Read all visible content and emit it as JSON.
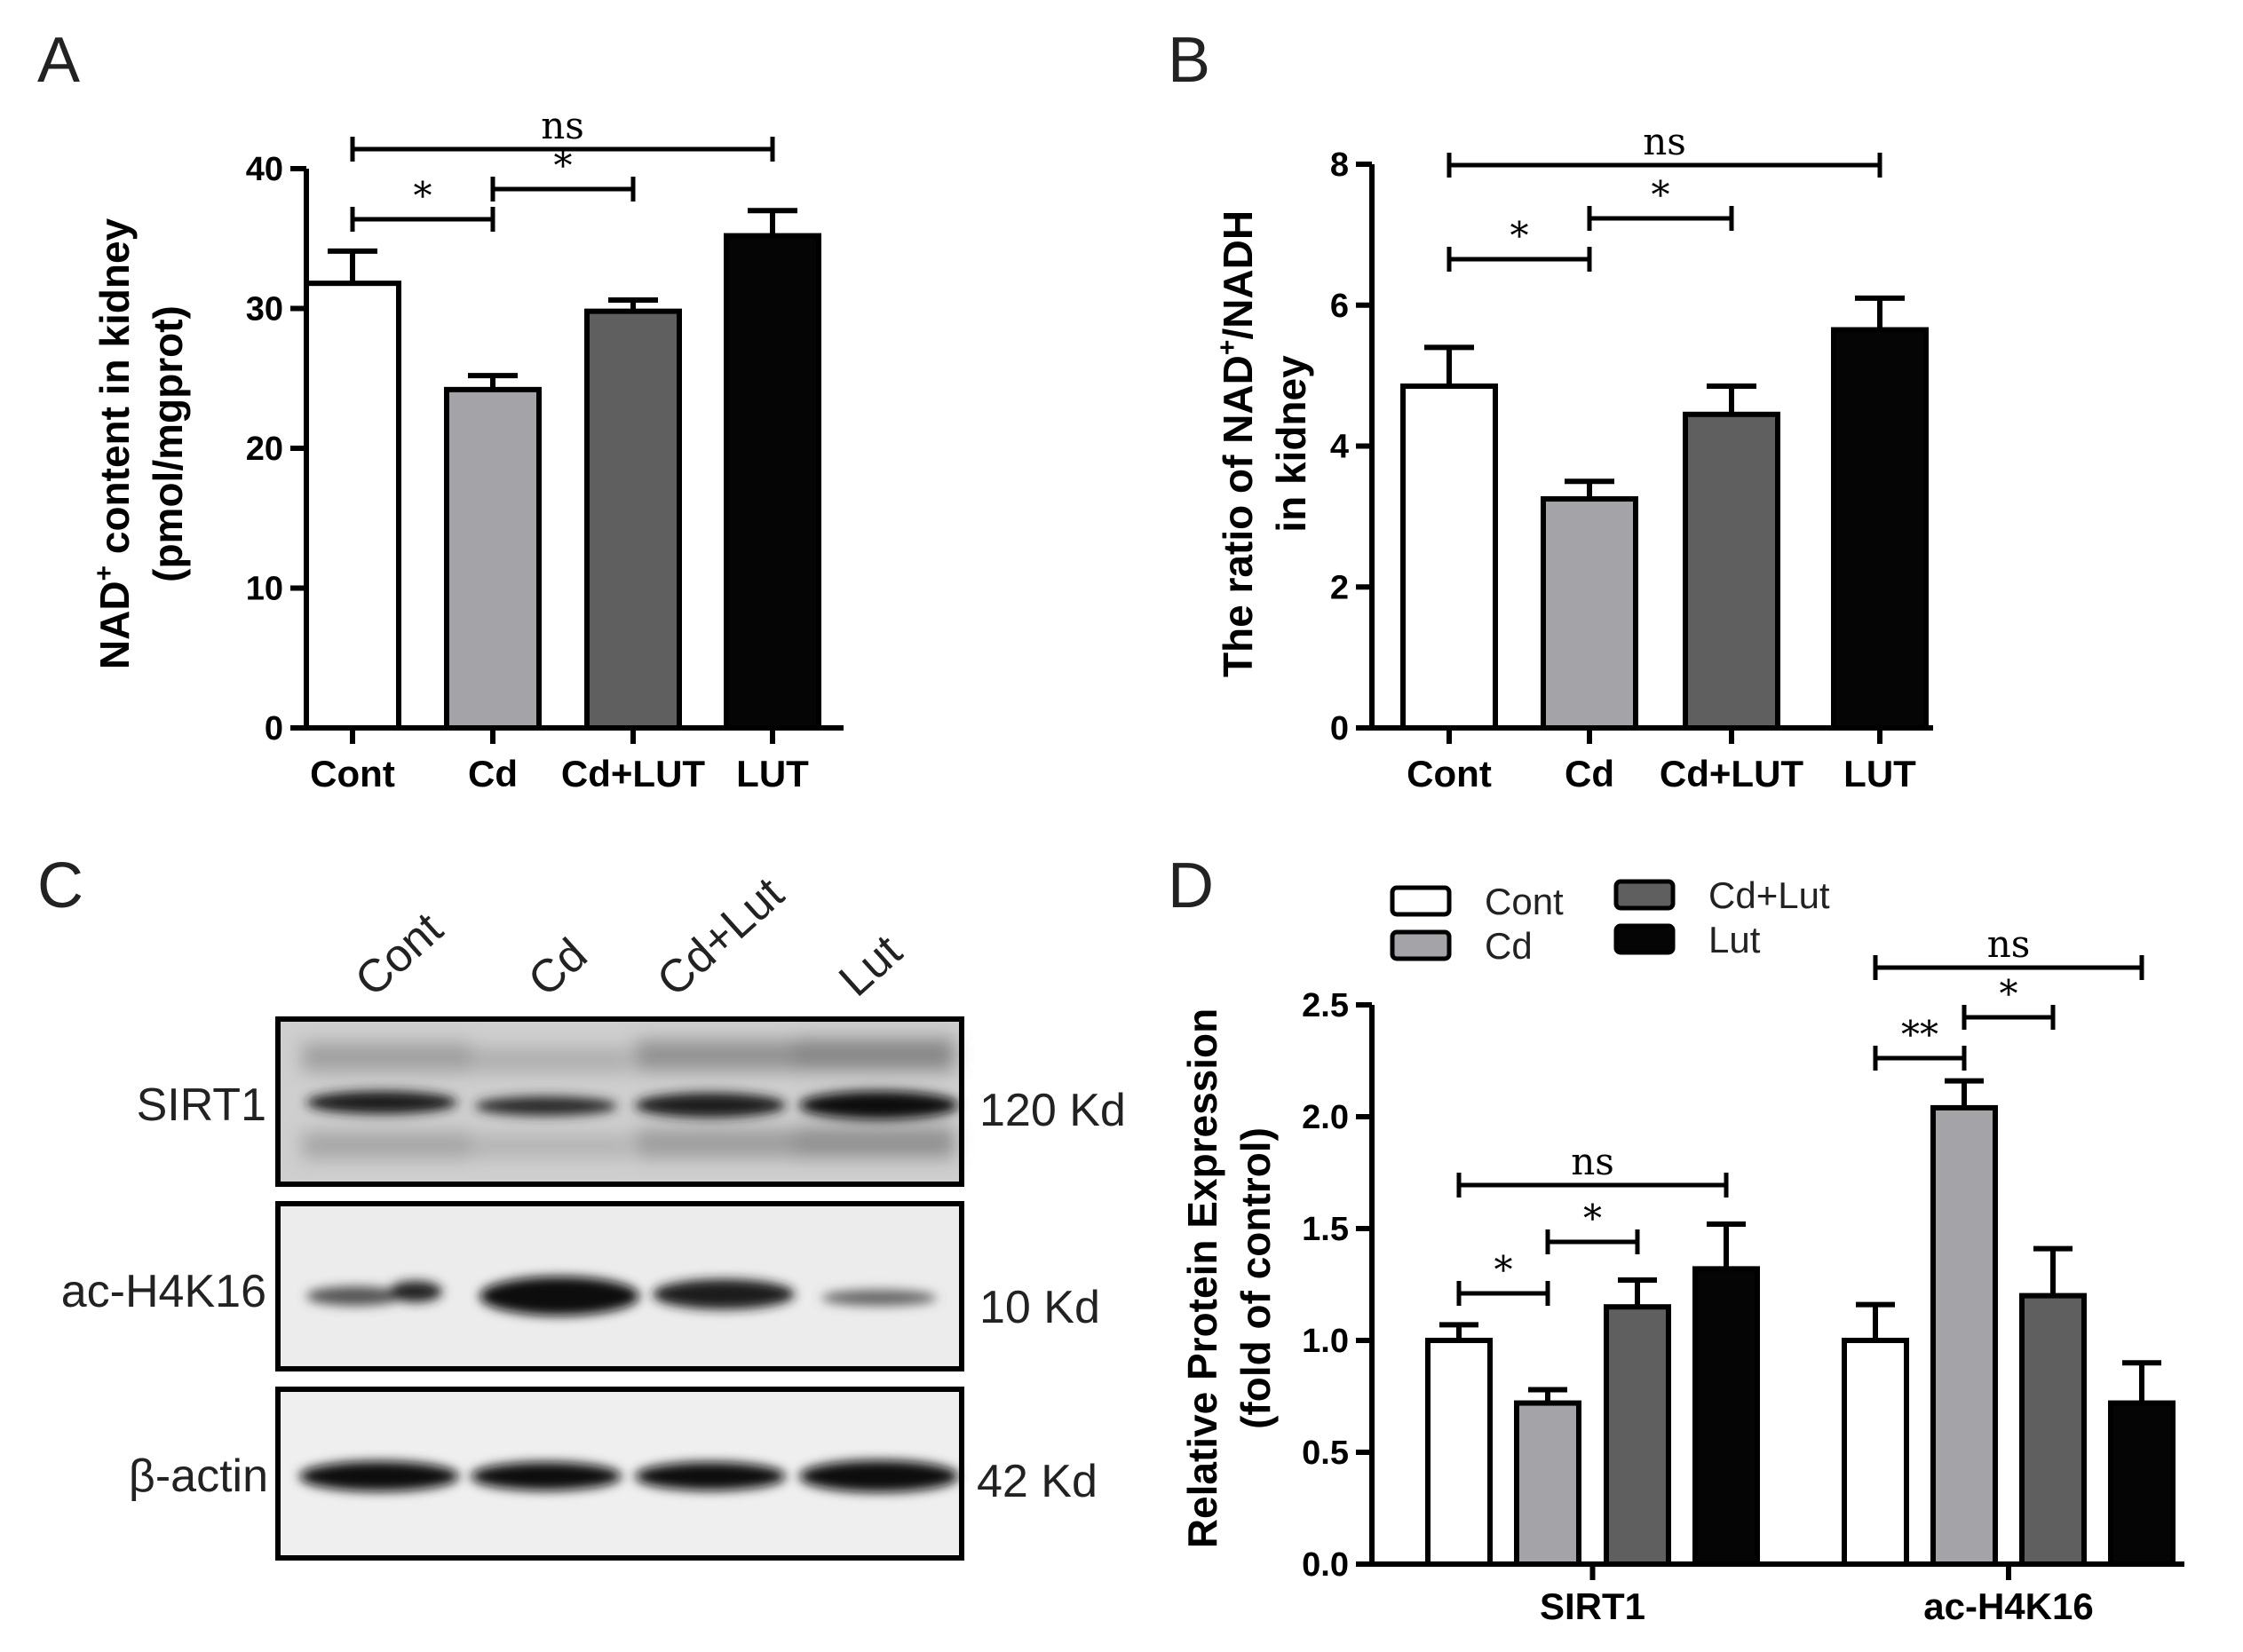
{
  "panel_letters": {
    "a": "A",
    "b": "B",
    "c": "C",
    "d": "D"
  },
  "colors": {
    "cont": "#ffffff",
    "cd": "#a3a3a8",
    "cdlut": "#5f5f5f",
    "lut": "#050505"
  },
  "chart_data": [
    {
      "id": "A",
      "type": "bar",
      "ylabel_main": "NAD",
      "ylabel_sup": "+",
      "ylabel_rest": " content in kidney",
      "ylabel_line2": "(pmol/mgprot)",
      "ylim": [
        0,
        40
      ],
      "yticks": [
        0,
        10,
        20,
        30,
        40
      ],
      "categories": [
        "Cont",
        "Cd",
        "Cd+LUT",
        "LUT"
      ],
      "values": [
        31.8,
        24.2,
        29.8,
        35.2
      ],
      "errors": [
        2.3,
        1.0,
        0.8,
        1.8
      ],
      "significance": [
        {
          "from": 0,
          "to": 3,
          "label": "ns"
        },
        {
          "from": 0,
          "to": 1,
          "label": "*"
        },
        {
          "from": 1,
          "to": 2,
          "label": "*"
        }
      ]
    },
    {
      "id": "B",
      "type": "bar",
      "ylabel_main": "The ratio of NAD",
      "ylabel_sup": "+",
      "ylabel_rest": "/NADH",
      "ylabel_line2": "in kidney",
      "ylim": [
        0,
        8
      ],
      "yticks": [
        0,
        2,
        4,
        6,
        8
      ],
      "categories": [
        "Cont",
        "Cd",
        "Cd+LUT",
        "LUT"
      ],
      "values": [
        4.85,
        3.25,
        4.45,
        5.65
      ],
      "errors": [
        0.55,
        0.25,
        0.4,
        0.45
      ],
      "significance": [
        {
          "from": 0,
          "to": 3,
          "label": "ns"
        },
        {
          "from": 0,
          "to": 1,
          "label": "*"
        },
        {
          "from": 1,
          "to": 2,
          "label": "*"
        }
      ]
    },
    {
      "id": "D",
      "type": "bar",
      "ylabel_line1": "Relative Protein Expression",
      "ylabel_line2": "(fold of control)",
      "ylim": [
        0,
        2.5
      ],
      "yticks": [
        "0.0",
        "0.5",
        "1.0",
        "1.5",
        "2.0",
        "2.5"
      ],
      "categories": [
        "SIRT1",
        "ac-H4K16"
      ],
      "series": [
        {
          "name": "Cont",
          "values": [
            1.0,
            1.0
          ],
          "errors": [
            0.07,
            0.16
          ]
        },
        {
          "name": "Cd",
          "values": [
            0.72,
            2.04
          ],
          "errors": [
            0.06,
            0.12
          ]
        },
        {
          "name": "Cd+Lut",
          "values": [
            1.15,
            1.2
          ],
          "errors": [
            0.12,
            0.21
          ]
        },
        {
          "name": "Lut",
          "values": [
            1.32,
            0.72
          ],
          "errors": [
            0.2,
            0.18
          ]
        }
      ],
      "significance": [
        {
          "group": 0,
          "from": 0,
          "to": 3,
          "label": "ns"
        },
        {
          "group": 0,
          "from": 0,
          "to": 1,
          "label": "*"
        },
        {
          "group": 0,
          "from": 1,
          "to": 2,
          "label": "*"
        },
        {
          "group": 1,
          "from": 0,
          "to": 3,
          "label": "ns"
        },
        {
          "group": 1,
          "from": 0,
          "to": 1,
          "label": "**"
        },
        {
          "group": 1,
          "from": 1,
          "to": 2,
          "label": "*"
        }
      ]
    }
  ],
  "blot": {
    "lanes": [
      "Cont",
      "Cd",
      "Cd+Lut",
      "Lut"
    ],
    "rows": [
      {
        "label": "SIRT1",
        "size": "120 Kd"
      },
      {
        "label": "ac-H4K16",
        "size": "10 Kd"
      },
      {
        "label": "β-actin",
        "size": "42 Kd"
      }
    ]
  }
}
